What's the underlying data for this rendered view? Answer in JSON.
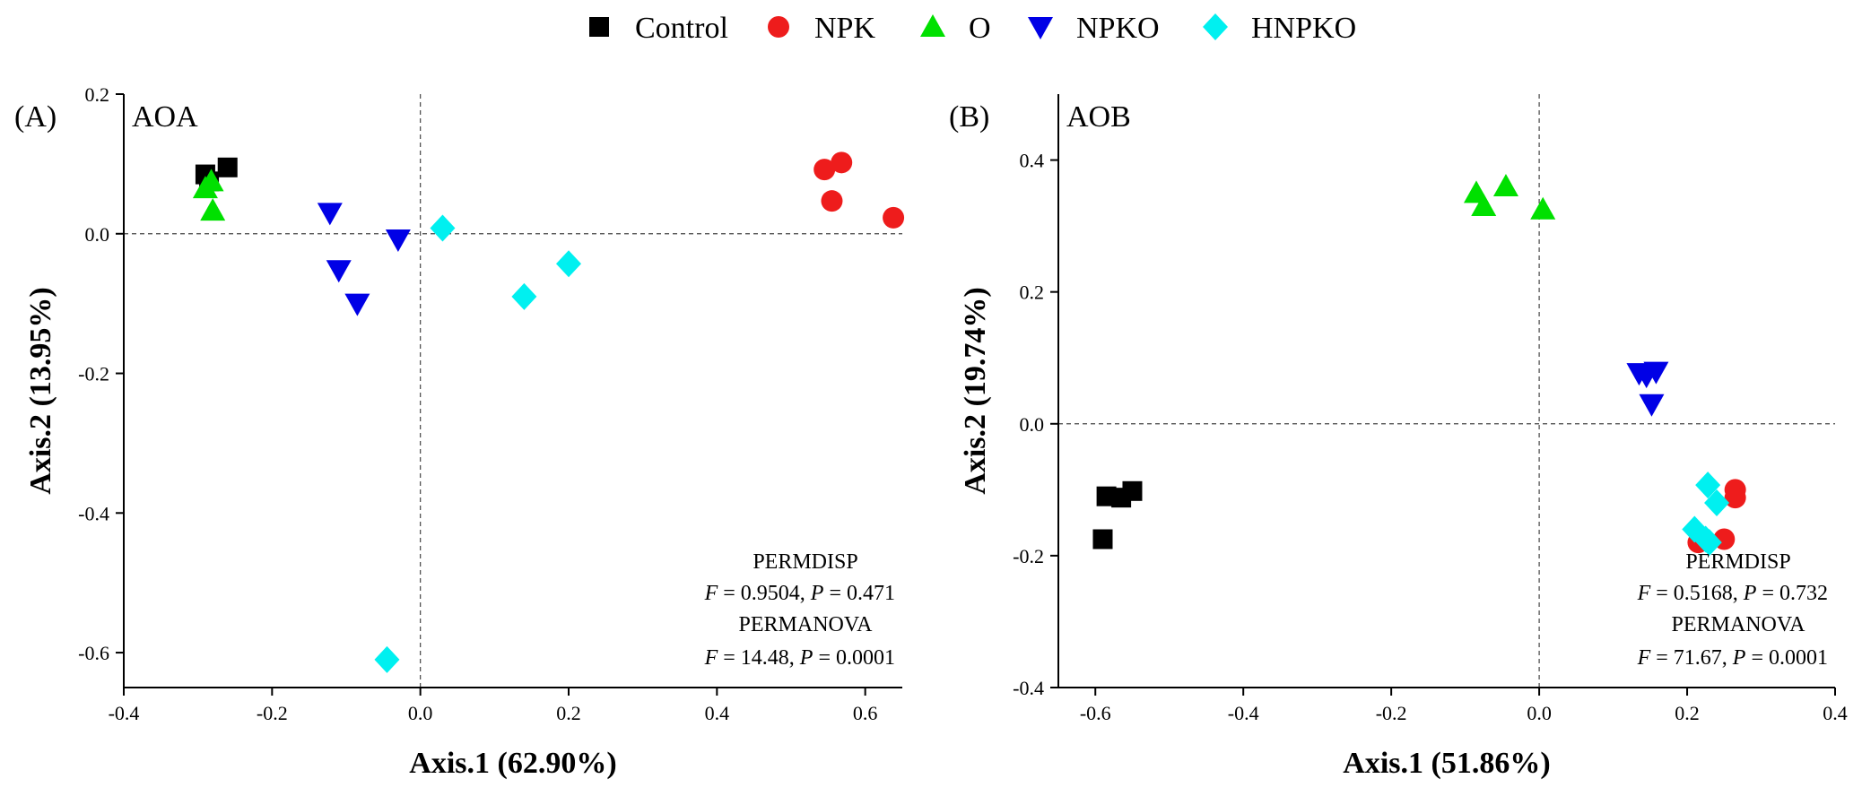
{
  "legend": [
    {
      "name": "Control",
      "shape": "square",
      "color": "#000000"
    },
    {
      "name": "NPK",
      "shape": "circle",
      "color": "#ee1c1c"
    },
    {
      "name": "O",
      "shape": "triangle-up",
      "color": "#00e000"
    },
    {
      "name": "NPKO",
      "shape": "triangle-down",
      "color": "#0000e6"
    },
    {
      "name": "HNPKO",
      "shape": "diamond",
      "color": "#00f0f0"
    }
  ],
  "chart_data": [
    {
      "type": "scatter",
      "panel_label": "(A)",
      "title": "AOA",
      "xlabel": "Axis.1 (62.90%)",
      "ylabel": "Axis.2 (13.95%)",
      "xlim": [
        -0.4,
        0.65
      ],
      "ylim": [
        -0.65,
        0.2
      ],
      "xticks": [
        -0.4,
        -0.2,
        0.0,
        0.2,
        0.4,
        0.6
      ],
      "xtick_labels": [
        "-0.4",
        "-0.2",
        "0.0",
        "0.2",
        "0.4",
        "0.6"
      ],
      "yticks": [
        -0.6,
        -0.4,
        -0.2,
        0.0,
        0.2
      ],
      "ytick_labels": [
        "-0.6",
        "-0.4",
        "-0.2",
        "0.0",
        "0.2"
      ],
      "series": [
        {
          "name": "Control",
          "x": [
            -0.29,
            -0.26,
            -0.285
          ],
          "y": [
            0.085,
            0.095,
            0.075
          ]
        },
        {
          "name": "NPK",
          "x": [
            0.545,
            0.568,
            0.555,
            0.638
          ],
          "y": [
            0.092,
            0.102,
            0.047,
            0.023
          ]
        },
        {
          "name": "O",
          "x": [
            -0.29,
            -0.282,
            -0.28
          ],
          "y": [
            0.065,
            0.075,
            0.033
          ]
        },
        {
          "name": "NPKO",
          "x": [
            -0.122,
            -0.11,
            -0.085,
            -0.03
          ],
          "y": [
            0.03,
            -0.052,
            -0.1,
            -0.008
          ]
        },
        {
          "name": "HNPKO",
          "x": [
            0.03,
            0.14,
            0.2,
            -0.045
          ],
          "y": [
            0.008,
            -0.09,
            -0.043,
            -0.61
          ]
        }
      ],
      "stats": {
        "permdisp_label": "PERMDISP",
        "permdisp_f": "0.9504",
        "permdisp_p": "0.471",
        "permanova_label": "PERMANOVA",
        "permanova_f": "14.48",
        "permanova_p": "0.0001"
      }
    },
    {
      "type": "scatter",
      "panel_label": "(B)",
      "title": "AOB",
      "xlabel": "Axis.1 (51.86%)",
      "ylabel": "Axis.2 (19.74%)",
      "xlim": [
        -0.65,
        0.4
      ],
      "ylim": [
        -0.4,
        0.5
      ],
      "xticks": [
        -0.6,
        -0.4,
        -0.2,
        0.0,
        0.2,
        0.4
      ],
      "xtick_labels": [
        "-0.6",
        "-0.4",
        "-0.2",
        "0.0",
        "0.2",
        "0.4"
      ],
      "yticks": [
        -0.4,
        -0.2,
        0.0,
        0.2,
        0.4
      ],
      "ytick_labels": [
        "-0.4",
        "-0.2",
        "0.0",
        "0.2",
        "0.4"
      ],
      "series": [
        {
          "name": "Control",
          "x": [
            -0.585,
            -0.565,
            -0.55,
            -0.59
          ],
          "y": [
            -0.11,
            -0.112,
            -0.102,
            -0.175
          ]
        },
        {
          "name": "NPK",
          "x": [
            0.265,
            0.265,
            0.25,
            0.215
          ],
          "y": [
            -0.1,
            -0.112,
            -0.175,
            -0.18
          ]
        },
        {
          "name": "O",
          "x": [
            -0.085,
            -0.075,
            -0.045,
            0.005
          ],
          "y": [
            0.35,
            0.33,
            0.36,
            0.325
          ]
        },
        {
          "name": "NPKO",
          "x": [
            0.135,
            0.145,
            0.158,
            0.152
          ],
          "y": [
            0.077,
            0.073,
            0.079,
            0.03
          ]
        },
        {
          "name": "HNPKO",
          "x": [
            0.228,
            0.24,
            0.21,
            0.225,
            0.23
          ],
          "y": [
            -0.093,
            -0.12,
            -0.16,
            -0.175,
            -0.18
          ]
        }
      ],
      "stats": {
        "permdisp_label": "PERMDISP",
        "permdisp_f": "0.5168",
        "permdisp_p": "0.732",
        "permanova_label": "PERMANOVA",
        "permanova_f": "71.67",
        "permanova_p": "0.0001"
      }
    }
  ]
}
